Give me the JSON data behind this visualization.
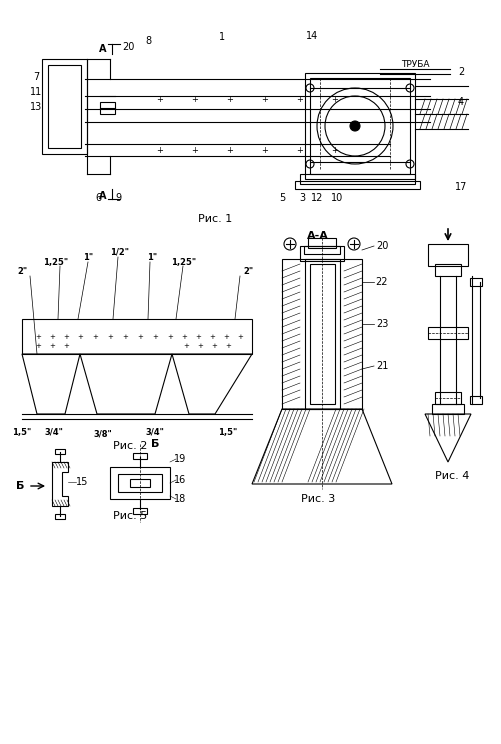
{
  "title": "",
  "background_color": "#ffffff",
  "fig1_caption": "Рис. 1",
  "fig2_caption": "Рис. 2",
  "fig3_caption": "Рис. 3",
  "fig4_caption": "Рис. 4",
  "fig5_caption": "Рис. 5",
  "label_color": "#000000",
  "line_color": "#000000",
  "hatch_color": "#000000"
}
